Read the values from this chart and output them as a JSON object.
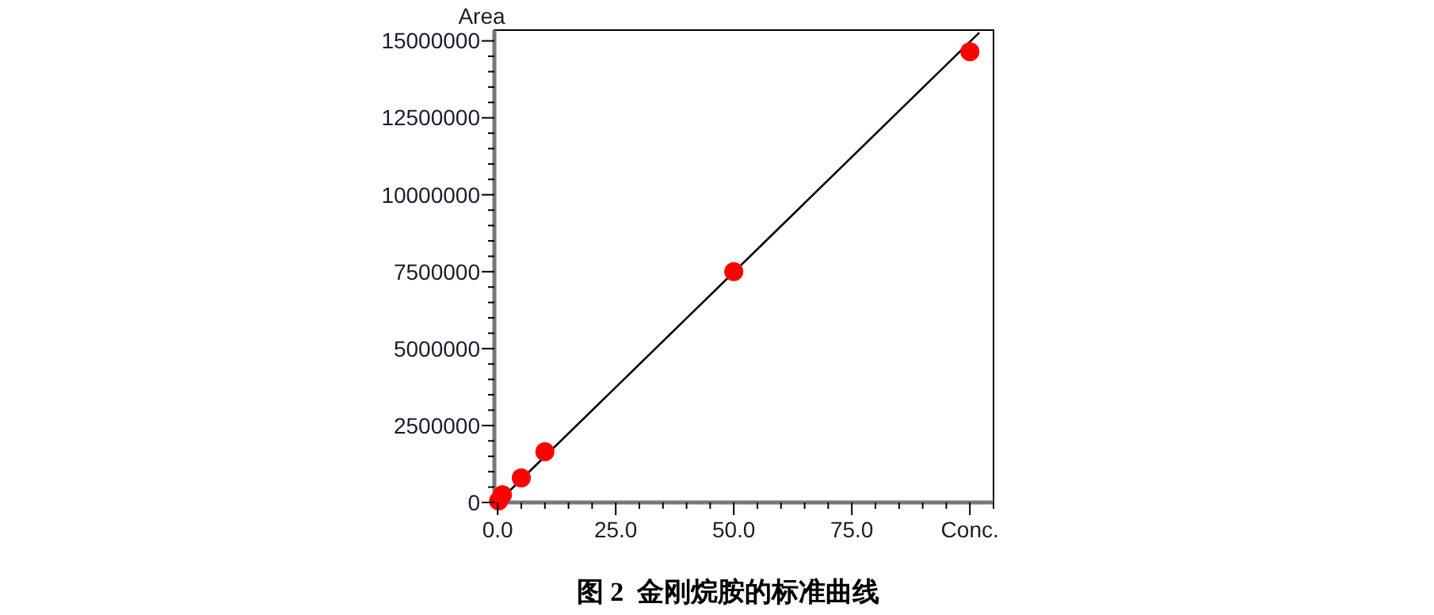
{
  "chart_data": {
    "type": "scatter",
    "title": "图 2  金刚烷胺的标准曲线",
    "ylabel": "Area",
    "marker": "circle",
    "grid": false,
    "xlim": [
      -0.7,
      105
    ],
    "xticks": [
      {
        "value": 0,
        "label": "0.0"
      },
      {
        "value": 5,
        "label": null
      },
      {
        "value": 10,
        "label": null
      },
      {
        "value": 15,
        "label": null
      },
      {
        "value": 20,
        "label": null
      },
      {
        "value": 25,
        "label": "25.0"
      },
      {
        "value": 30,
        "label": null
      },
      {
        "value": 35,
        "label": null
      },
      {
        "value": 40,
        "label": null
      },
      {
        "value": 45,
        "label": null
      },
      {
        "value": 50,
        "label": "50.0"
      },
      {
        "value": 55,
        "label": null
      },
      {
        "value": 60,
        "label": null
      },
      {
        "value": 65,
        "label": null
      },
      {
        "value": 70,
        "label": null
      },
      {
        "value": 75,
        "label": "75.0"
      },
      {
        "value": 80,
        "label": null
      },
      {
        "value": 85,
        "label": null
      },
      {
        "value": 90,
        "label": null
      },
      {
        "value": 95,
        "label": null
      },
      {
        "value": 100,
        "label": "Conc."
      },
      {
        "value": 105,
        "label": null
      }
    ],
    "ylim": [
      0,
      15350000
    ],
    "yticks": [
      0,
      {
        "value": 500000,
        "label": null
      },
      {
        "value": 1000000,
        "label": null
      },
      {
        "value": 1500000,
        "label": null
      },
      {
        "value": 2000000,
        "label": null
      },
      2500000,
      {
        "value": 3000000,
        "label": null
      },
      {
        "value": 3500000,
        "label": null
      },
      {
        "value": 4000000,
        "label": null
      },
      {
        "value": 4500000,
        "label": null
      },
      5000000,
      {
        "value": 5500000,
        "label": null
      },
      {
        "value": 6000000,
        "label": null
      },
      {
        "value": 6500000,
        "label": null
      },
      {
        "value": 7000000,
        "label": null
      },
      7500000,
      {
        "value": 8000000,
        "label": null
      },
      {
        "value": 8500000,
        "label": null
      },
      {
        "value": 9000000,
        "label": null
      },
      {
        "value": 9500000,
        "label": null
      },
      10000000,
      {
        "value": 10500000,
        "label": null
      },
      {
        "value": 11000000,
        "label": null
      },
      {
        "value": 11500000,
        "label": null
      },
      {
        "value": 12000000,
        "label": null
      },
      12500000,
      {
        "value": 13000000,
        "label": null
      },
      {
        "value": 13500000,
        "label": null
      },
      {
        "value": 14000000,
        "label": null
      },
      {
        "value": 14500000,
        "label": null
      },
      15000000
    ],
    "series": [
      {
        "type": "line",
        "color": "#000000",
        "marker": "none",
        "x": [
          0,
          102
        ],
        "values": [
          0,
          15270000
        ]
      },
      {
        "color": "#ff0000",
        "x": [
          0.2,
          1,
          5,
          10,
          50,
          100
        ],
        "values": [
          50000,
          250000,
          800000,
          1650000,
          7500000,
          14650000
        ]
      }
    ]
  }
}
